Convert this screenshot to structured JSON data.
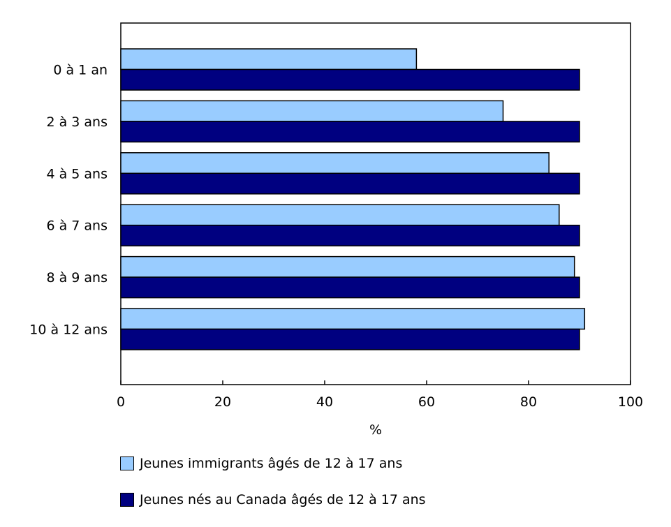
{
  "chart_data": {
    "type": "bar",
    "orientation": "horizontal",
    "categories": [
      "0 à 1 an",
      "2 à 3 ans",
      "4 à 5 ans",
      "6 à 7 ans",
      "8 à 9 ans",
      "10 à 12 ans"
    ],
    "series": [
      {
        "name": "Jeunes immigrants âgés de 12 à 17 ans",
        "color": "#99ccff",
        "values": [
          58,
          75,
          84,
          86,
          89,
          91
        ]
      },
      {
        "name": "Jeunes nés au Canada âgés de 12 à 17 ans",
        "color": "#000080",
        "values": [
          90,
          90,
          90,
          90,
          90,
          90
        ]
      }
    ],
    "xlabel": "%",
    "ylabel": "",
    "xlim": [
      0,
      100
    ],
    "xticks": [
      0,
      20,
      40,
      60,
      80,
      100
    ],
    "grid": false,
    "legend_position": "bottom"
  }
}
